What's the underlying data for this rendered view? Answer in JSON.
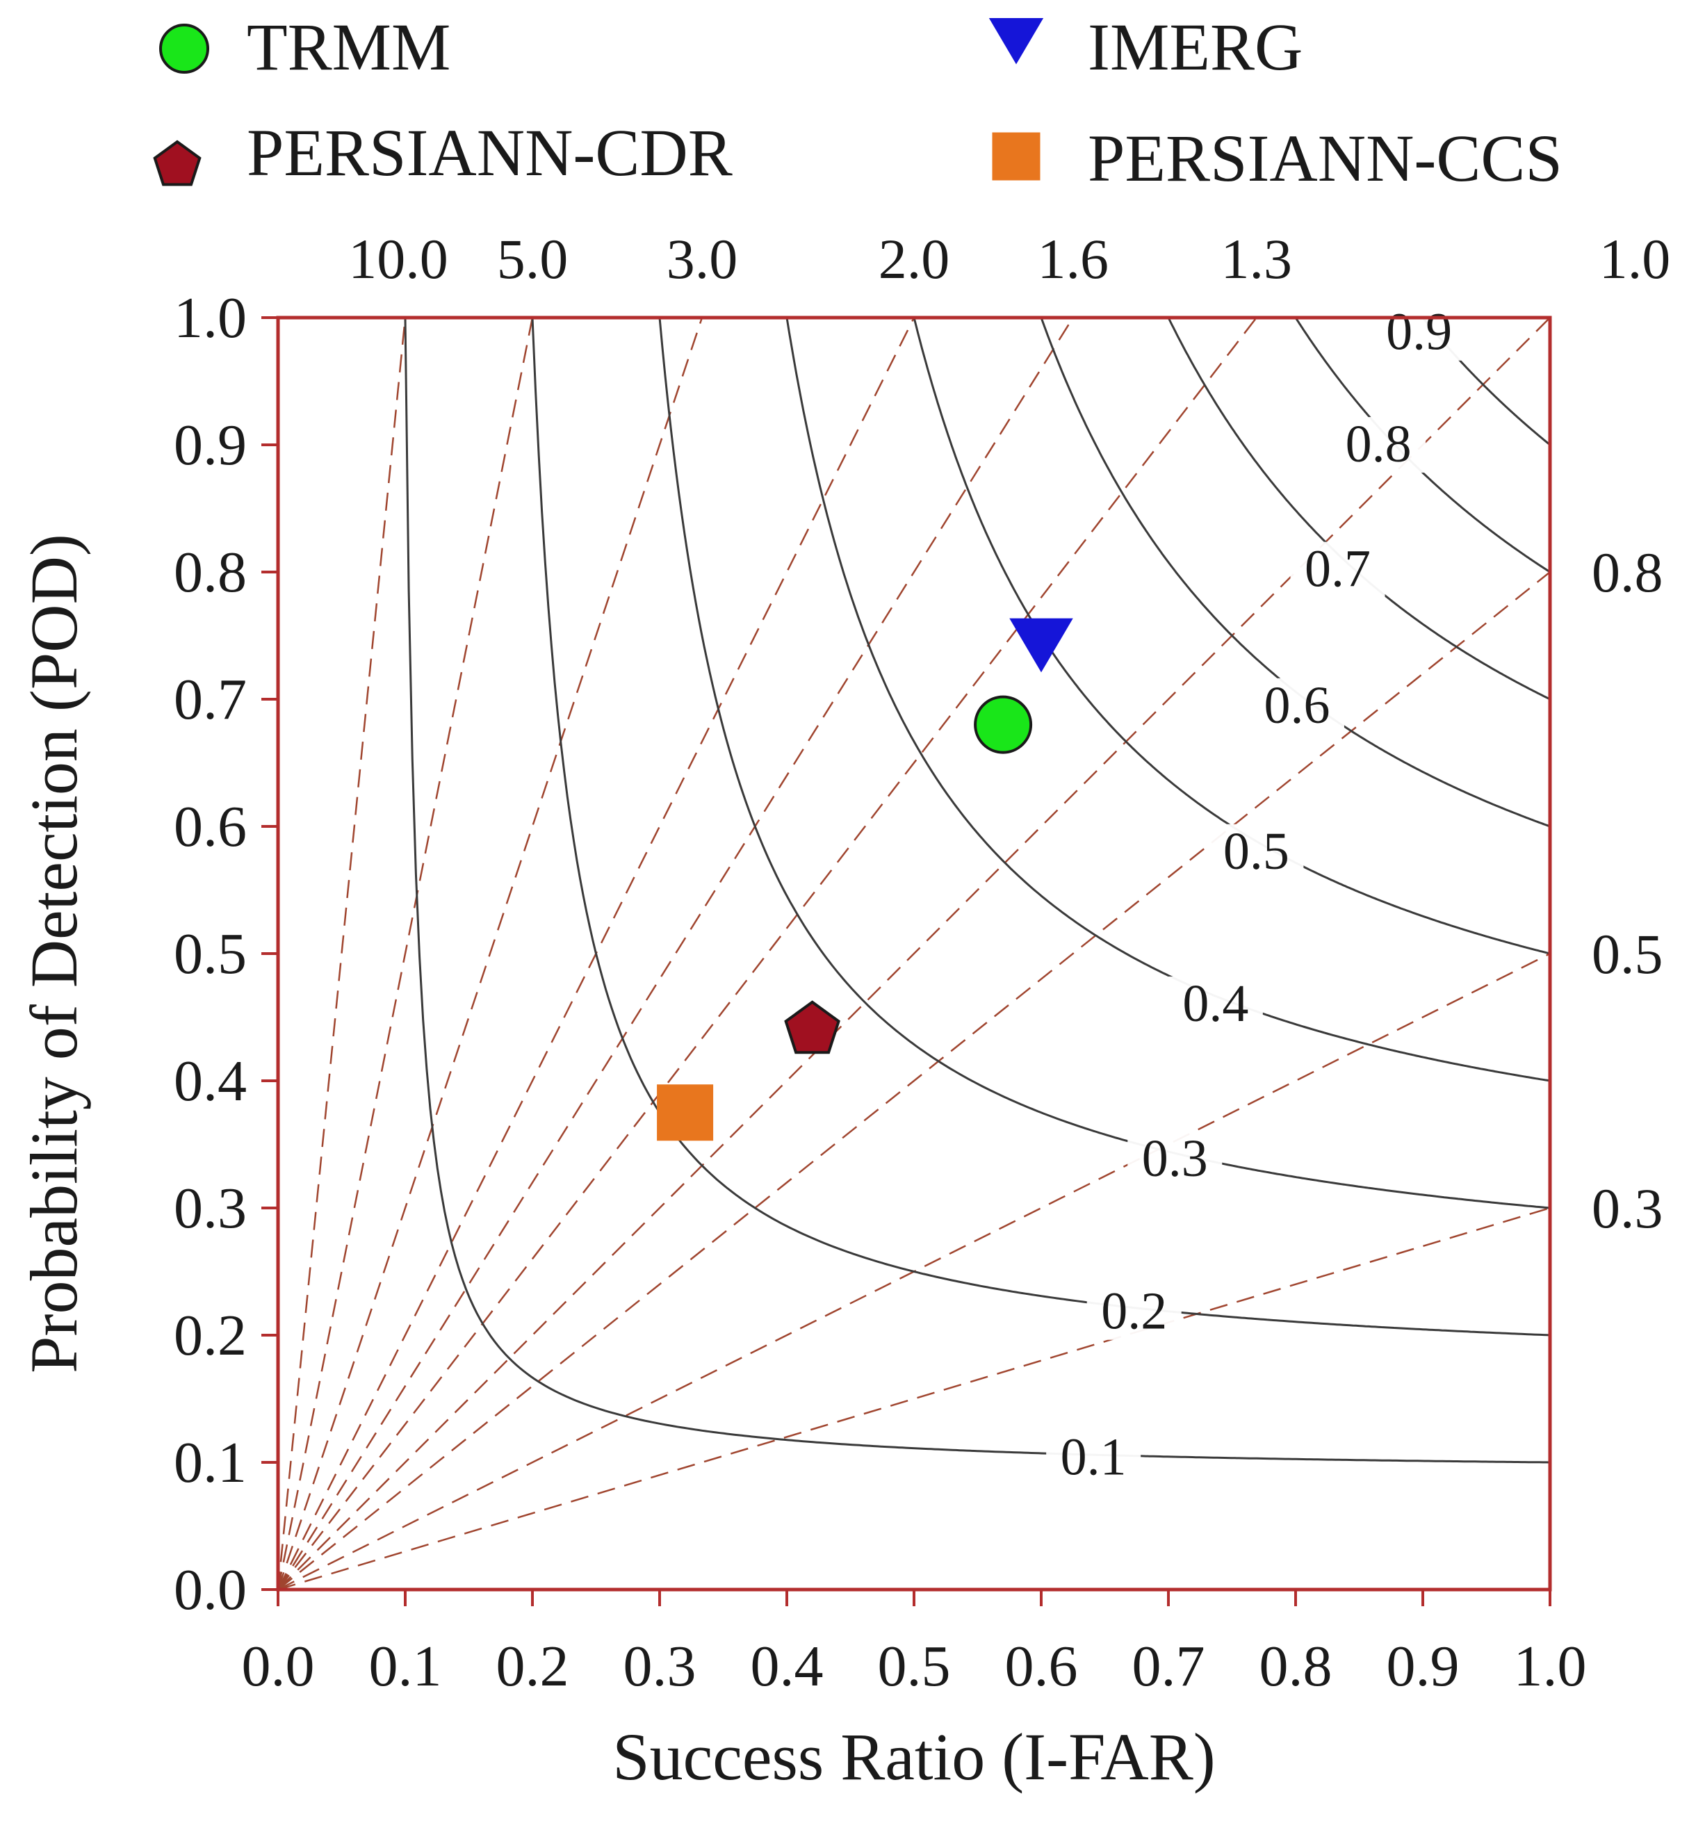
{
  "chart_data": {
    "type": "performance-diagram",
    "xlabel": "Success Ratio (I-FAR)",
    "ylabel": "Probability of Detection (POD)",
    "xlim": [
      0,
      1
    ],
    "ylim": [
      0,
      1
    ],
    "x_ticks": [
      "0.0",
      "0.1",
      "0.2",
      "0.3",
      "0.4",
      "0.5",
      "0.6",
      "0.7",
      "0.8",
      "0.9",
      "1.0"
    ],
    "y_ticks": [
      "0.0",
      "0.1",
      "0.2",
      "0.3",
      "0.4",
      "0.5",
      "0.6",
      "0.7",
      "0.8",
      "0.9",
      "1.0"
    ],
    "csi_contours": [
      {
        "value": 0.1,
        "label": "0.1"
      },
      {
        "value": 0.2,
        "label": "0.2"
      },
      {
        "value": 0.3,
        "label": "0.3"
      },
      {
        "value": 0.4,
        "label": "0.4"
      },
      {
        "value": 0.5,
        "label": "0.5"
      },
      {
        "value": 0.6,
        "label": "0.6"
      },
      {
        "value": 0.7,
        "label": "0.7"
      },
      {
        "value": 0.8,
        "label": "0.8"
      },
      {
        "value": 0.9,
        "label": "0.9"
      }
    ],
    "bias_lines": [
      {
        "value": 10.0,
        "label": "10.0",
        "axis": "top"
      },
      {
        "value": 5.0,
        "label": "5.0",
        "axis": "top"
      },
      {
        "value": 3.0,
        "label": "3.0",
        "axis": "top"
      },
      {
        "value": 2.0,
        "label": "2.0",
        "axis": "top"
      },
      {
        "value": 1.6,
        "label": "1.6",
        "axis": "top"
      },
      {
        "value": 1.3,
        "label": "1.3",
        "axis": "top"
      },
      {
        "value": 1.0,
        "label": "1.0",
        "axis": "top"
      },
      {
        "value": 0.8,
        "label": "0.8",
        "axis": "right"
      },
      {
        "value": 0.5,
        "label": "0.5",
        "axis": "right"
      },
      {
        "value": 0.3,
        "label": "0.3",
        "axis": "right"
      }
    ],
    "series": [
      {
        "name": "TRMM",
        "marker": "circle",
        "color": "#19e619",
        "x": 0.57,
        "y": 0.68
      },
      {
        "name": "IMERG",
        "marker": "triangle-down",
        "color": "#1515d8",
        "x": 0.6,
        "y": 0.745
      },
      {
        "name": "PERSIANN-CDR",
        "marker": "pentagon",
        "color": "#a01020",
        "x": 0.42,
        "y": 0.44
      },
      {
        "name": "PERSIANN-CCS",
        "marker": "square",
        "color": "#e8761e",
        "x": 0.32,
        "y": 0.375
      }
    ],
    "colors": {
      "frame": "#b32d2d",
      "csi_line": "#3a3a3a",
      "bias_line": "#a0452f"
    }
  }
}
